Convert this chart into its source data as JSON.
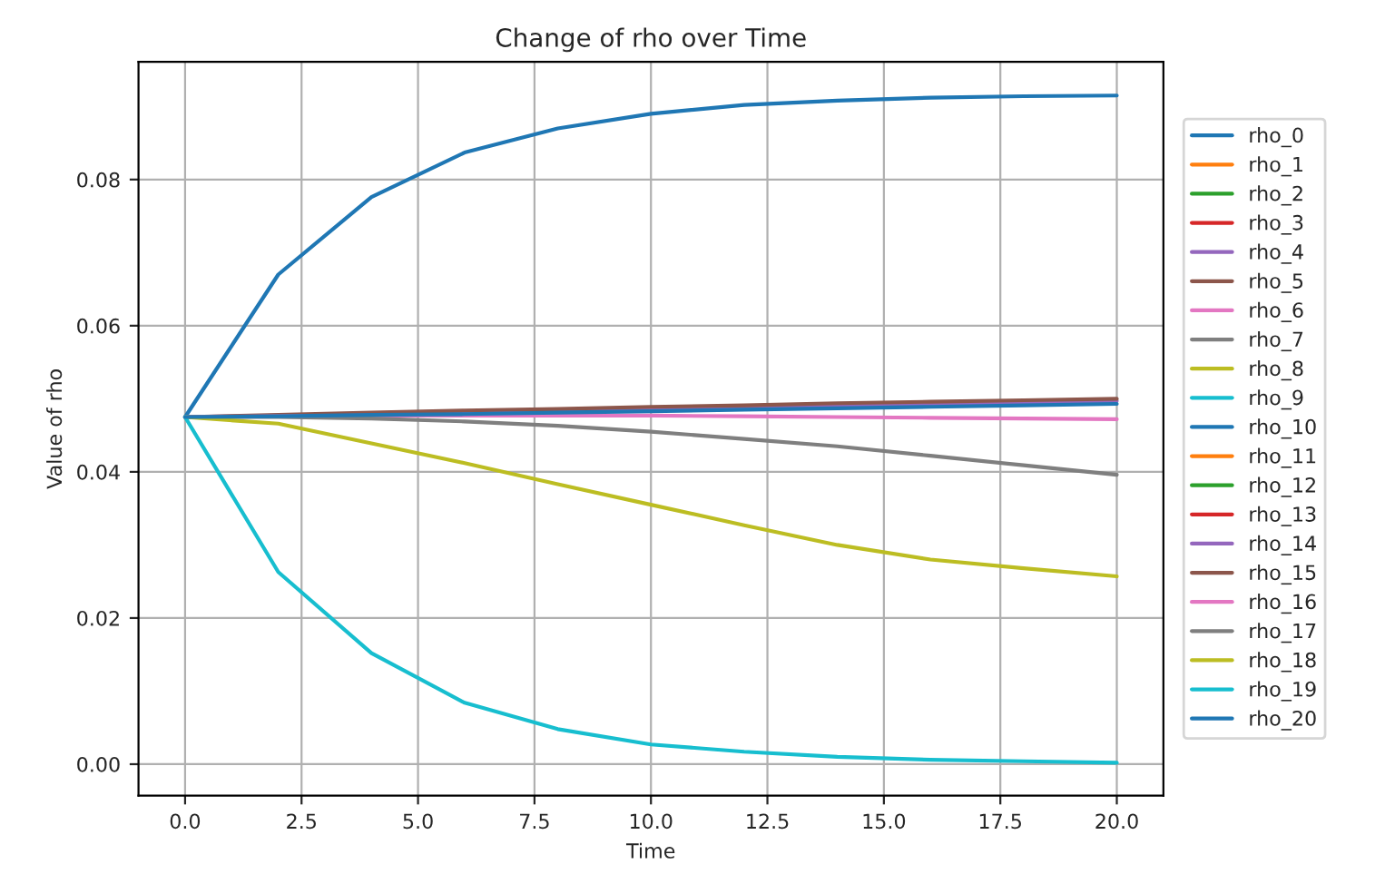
{
  "chart_data": {
    "type": "line",
    "title": "Change of rho over Time",
    "xlabel": "Time",
    "ylabel": "Value of rho",
    "x": [
      0,
      2,
      4,
      6,
      8,
      10,
      12,
      14,
      16,
      18,
      20
    ],
    "series": [
      {
        "name": "rho_0",
        "color": "#1f77b4",
        "values": [
          0.0475,
          0.067,
          0.0776,
          0.0837,
          0.087,
          0.089,
          0.0902,
          0.0908,
          0.0912,
          0.0914,
          0.0915
        ]
      },
      {
        "name": "rho_1",
        "color": "#ff7f0e",
        "values": [
          null,
          null,
          null,
          null,
          null,
          null,
          null,
          null,
          null,
          null,
          null
        ]
      },
      {
        "name": "rho_2",
        "color": "#2ca02c",
        "values": [
          null,
          null,
          null,
          null,
          null,
          null,
          null,
          null,
          null,
          null,
          null
        ]
      },
      {
        "name": "rho_3",
        "color": "#d62728",
        "values": [
          null,
          null,
          null,
          null,
          null,
          null,
          null,
          null,
          null,
          null,
          null
        ]
      },
      {
        "name": "rho_4",
        "color": "#9467bd",
        "values": [
          null,
          null,
          null,
          null,
          null,
          null,
          null,
          null,
          null,
          null,
          null
        ]
      },
      {
        "name": "rho_5",
        "color": "#8c564b",
        "values": [
          null,
          null,
          null,
          null,
          null,
          null,
          null,
          null,
          null,
          null,
          null
        ]
      },
      {
        "name": "rho_6",
        "color": "#e377c2",
        "values": [
          null,
          null,
          null,
          null,
          null,
          null,
          null,
          null,
          null,
          null,
          null
        ]
      },
      {
        "name": "rho_7",
        "color": "#7f7f7f",
        "values": [
          null,
          null,
          null,
          null,
          null,
          null,
          null,
          null,
          null,
          null,
          null
        ]
      },
      {
        "name": "rho_8",
        "color": "#bcbd22",
        "values": [
          null,
          null,
          null,
          null,
          null,
          null,
          null,
          null,
          null,
          null,
          null
        ]
      },
      {
        "name": "rho_9",
        "color": "#17becf",
        "values": [
          null,
          null,
          null,
          null,
          null,
          null,
          null,
          null,
          null,
          null,
          null
        ]
      },
      {
        "name": "rho_10",
        "color": "#1f77b4",
        "values": [
          null,
          null,
          null,
          null,
          null,
          null,
          null,
          null,
          null,
          null,
          null
        ]
      },
      {
        "name": "rho_11",
        "color": "#ff7f0e",
        "values": [
          null,
          null,
          null,
          null,
          null,
          null,
          null,
          null,
          null,
          null,
          null
        ]
      },
      {
        "name": "rho_12",
        "color": "#2ca02c",
        "values": [
          null,
          null,
          null,
          null,
          null,
          null,
          null,
          null,
          null,
          null,
          null
        ]
      },
      {
        "name": "rho_13",
        "color": "#d62728",
        "values": [
          null,
          null,
          null,
          null,
          null,
          null,
          null,
          null,
          null,
          null,
          null
        ]
      },
      {
        "name": "rho_14",
        "color": "#9467bd",
        "values": [
          0.0475,
          0.0477,
          0.048,
          0.0482,
          0.0484,
          0.0487,
          0.0489,
          0.0491,
          0.0493,
          0.0495,
          0.0497
        ]
      },
      {
        "name": "rho_15",
        "color": "#8c564b",
        "values": [
          0.0475,
          0.0478,
          0.0481,
          0.0484,
          0.0486,
          0.0489,
          0.0491,
          0.0494,
          0.0496,
          0.0498,
          0.05
        ]
      },
      {
        "name": "rho_16",
        "color": "#e377c2",
        "values": [
          0.0475,
          0.0476,
          0.0477,
          0.0477,
          0.0477,
          0.0477,
          0.0476,
          0.0475,
          0.0474,
          0.0473,
          0.0472
        ]
      },
      {
        "name": "rho_17",
        "color": "#7f7f7f",
        "values": [
          0.0475,
          0.0475,
          0.0473,
          0.0469,
          0.0463,
          0.0455,
          0.0445,
          0.0435,
          0.0422,
          0.0409,
          0.0396
        ]
      },
      {
        "name": "rho_18",
        "color": "#bcbd22",
        "values": [
          0.0475,
          0.0466,
          0.0439,
          0.0412,
          0.0383,
          0.0355,
          0.0327,
          0.03,
          0.028,
          0.0268,
          0.0257
        ]
      },
      {
        "name": "rho_19",
        "color": "#17becf",
        "values": [
          0.0475,
          0.0263,
          0.0152,
          0.0084,
          0.0048,
          0.0027,
          0.0017,
          0.001,
          0.0006,
          0.0004,
          0.0002
        ]
      },
      {
        "name": "rho_20",
        "color": "#1f77b4",
        "values": [
          0.0475,
          0.0476,
          0.0478,
          0.0479,
          0.0481,
          0.0483,
          0.0485,
          0.0487,
          0.0489,
          0.0491,
          0.0493
        ]
      }
    ],
    "xlim": [
      -1,
      21
    ],
    "xticks": [
      {
        "value": 0,
        "label": "0.0"
      },
      {
        "value": 2.5,
        "label": "2.5"
      },
      {
        "value": 5,
        "label": "5.0"
      },
      {
        "value": 7.5,
        "label": "7.5"
      },
      {
        "value": 10,
        "label": "10.0"
      },
      {
        "value": 12.5,
        "label": "12.5"
      },
      {
        "value": 15,
        "label": "15.0"
      },
      {
        "value": 17.5,
        "label": "17.5"
      },
      {
        "value": 20,
        "label": "20.0"
      }
    ],
    "ylim": [
      -0.0043,
      0.0961
    ],
    "yticks": [
      {
        "value": 0,
        "label": "0.00"
      },
      {
        "value": 0.02,
        "label": "0.02"
      },
      {
        "value": 0.04,
        "label": "0.04"
      },
      {
        "value": 0.06,
        "label": "0.06"
      },
      {
        "value": 0.08,
        "label": "0.08"
      }
    ],
    "grid": true,
    "legend": "right"
  }
}
